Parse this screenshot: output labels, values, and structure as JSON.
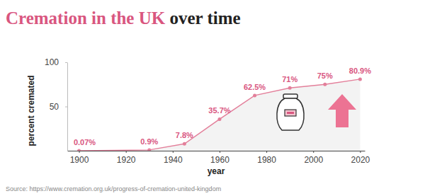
{
  "chart_data": {
    "type": "area",
    "title": "Cremation in the UK over time",
    "x_label": "year",
    "y_label": "percent cremated",
    "source": "Source: https://www.cremation.org.uk/progress-of-cremation-united-kingdom",
    "x": [
      1900,
      1930,
      1945,
      1960,
      1975,
      1990,
      2005,
      2020
    ],
    "values": [
      0.07,
      0.9,
      7.8,
      35.7,
      62.5,
      71,
      75,
      80.9
    ],
    "value_labels": [
      "0.07%",
      "0.9%",
      "7.8%",
      "35.7%",
      "62.5%",
      "71%",
      "75%",
      "80.9%"
    ],
    "color": "#e37f9a",
    "marker": "circle",
    "data_labels": true,
    "grid": false,
    "xlim": [
      1895,
      2022
    ],
    "xticks": [
      1900,
      1920,
      1940,
      1960,
      1980,
      2000,
      2020
    ],
    "ylim": [
      0,
      100
    ],
    "yticks": [
      50,
      100
    ]
  }
}
